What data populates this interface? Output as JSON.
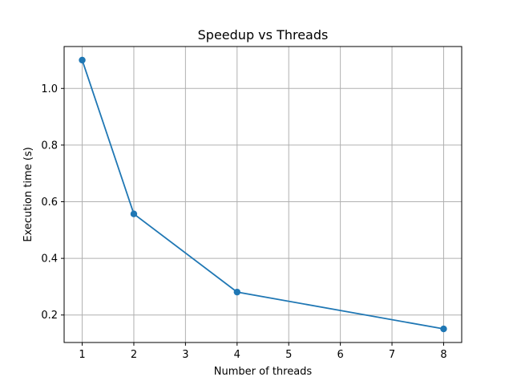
{
  "chart_data": {
    "type": "line",
    "title": "Speedup vs Threads",
    "xlabel": "Number of threads",
    "ylabel": "Execution time (s)",
    "x": [
      1,
      2,
      4,
      8
    ],
    "series": [
      {
        "values": [
          1.1,
          0.557,
          0.281,
          0.151
        ]
      }
    ],
    "xlim": [
      0.65,
      8.35
    ],
    "ylim": [
      0.103,
      1.148
    ],
    "xticks": [
      1,
      2,
      3,
      4,
      5,
      6,
      7,
      8
    ],
    "yticks": [
      0.2,
      0.4,
      0.6,
      0.8,
      1.0
    ],
    "xtick_labels": [
      "1",
      "2",
      "3",
      "4",
      "5",
      "6",
      "7",
      "8"
    ],
    "ytick_labels": [
      "0.2",
      "0.4",
      "0.6",
      "0.8",
      "1.0"
    ],
    "grid": true,
    "marker": "circle",
    "color": "#1f77b4"
  }
}
